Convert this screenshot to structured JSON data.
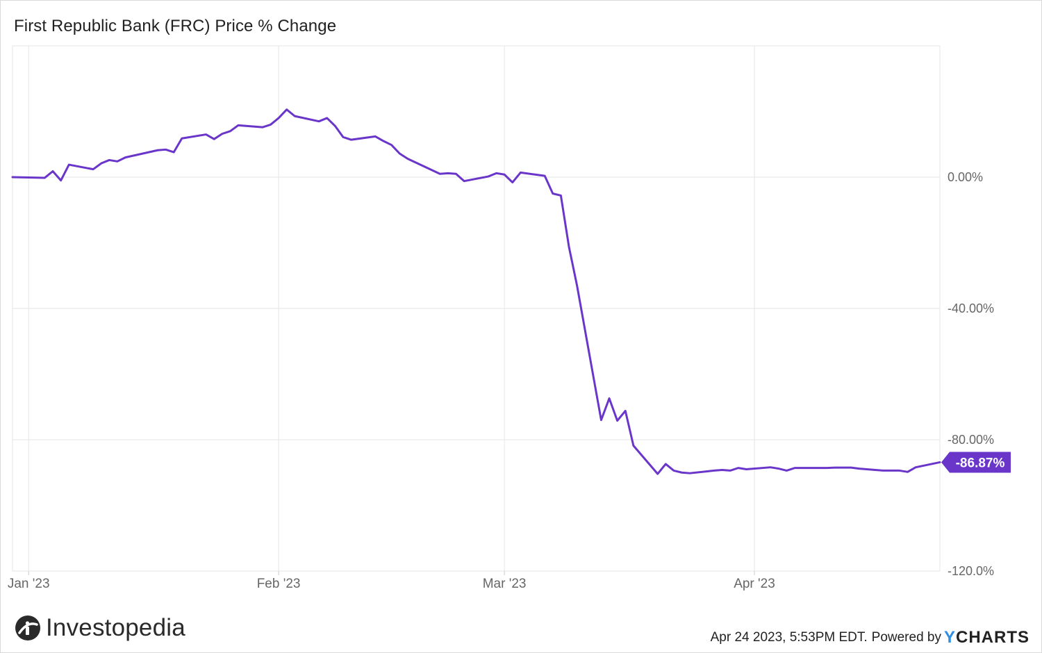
{
  "title": "First Republic Bank (FRC) Price % Change",
  "footer": {
    "timestamp": "Apr 24 2023, 5:53PM EDT.",
    "powered_by": "Powered by",
    "ycharts_y": "Y",
    "ycharts_rest": "CHARTS",
    "brand": "Investopedia",
    "brand_icon": "investopedia-logo-icon"
  },
  "colors": {
    "line": "#6a35c9",
    "grid": "#e6e6e6",
    "axis_text": "#666666",
    "last_value_bg": "#6a35c9",
    "ycharts_y": "#2f8de4"
  },
  "chart_data": {
    "type": "line",
    "title": "First Republic Bank (FRC) Price % Change",
    "xlabel": "",
    "ylabel": "",
    "y_unit": "%",
    "ylim": [
      -120,
      40
    ],
    "y_ticks": [
      0,
      -40,
      -80,
      -120
    ],
    "y_tick_labels": [
      "0.00%",
      "-40.00%",
      "-80.00%",
      "-120.0%"
    ],
    "xlim": [
      "2022-12-30",
      "2023-04-24"
    ],
    "x_ticks": [
      "2023-01-01",
      "2023-02-01",
      "2023-03-01",
      "2023-04-01"
    ],
    "x_tick_labels": [
      "Jan '23",
      "Feb '23",
      "Mar '23",
      "Apr '23"
    ],
    "grid": true,
    "last_value_label": "-86.87%",
    "series": [
      {
        "x": [
          "2022-12-30",
          "2023-01-03",
          "2023-01-04",
          "2023-01-05",
          "2023-01-06",
          "2023-01-09",
          "2023-01-10",
          "2023-01-11",
          "2023-01-12",
          "2023-01-13",
          "2023-01-17",
          "2023-01-18",
          "2023-01-19",
          "2023-01-20",
          "2023-01-23",
          "2023-01-24",
          "2023-01-25",
          "2023-01-26",
          "2023-01-27",
          "2023-01-30",
          "2023-01-31",
          "2023-02-01",
          "2023-02-02",
          "2023-02-03",
          "2023-02-06",
          "2023-02-07",
          "2023-02-08",
          "2023-02-09",
          "2023-02-10",
          "2023-02-13",
          "2023-02-14",
          "2023-02-15",
          "2023-02-16",
          "2023-02-17",
          "2023-02-21",
          "2023-02-22",
          "2023-02-23",
          "2023-02-24",
          "2023-02-27",
          "2023-02-28",
          "2023-03-01",
          "2023-03-02",
          "2023-03-03",
          "2023-03-06",
          "2023-03-07",
          "2023-03-08",
          "2023-03-09",
          "2023-03-10",
          "2023-03-13",
          "2023-03-14",
          "2023-03-15",
          "2023-03-16",
          "2023-03-17",
          "2023-03-20",
          "2023-03-21",
          "2023-03-22",
          "2023-03-23",
          "2023-03-24",
          "2023-03-27",
          "2023-03-28",
          "2023-03-29",
          "2023-03-30",
          "2023-03-31",
          "2023-04-03",
          "2023-04-04",
          "2023-04-05",
          "2023-04-06",
          "2023-04-10",
          "2023-04-11",
          "2023-04-12",
          "2023-04-13",
          "2023-04-14",
          "2023-04-17",
          "2023-04-18",
          "2023-04-19",
          "2023-04-20",
          "2023-04-21",
          "2023-04-24"
        ],
        "values": [
          0.0,
          -0.2,
          1.8,
          -1.0,
          3.8,
          2.4,
          4.2,
          5.2,
          4.8,
          6.0,
          8.2,
          8.4,
          7.6,
          11.8,
          13.0,
          11.6,
          13.2,
          14.0,
          15.8,
          15.2,
          16.0,
          18.0,
          20.6,
          18.6,
          17.0,
          18.0,
          15.6,
          12.2,
          11.4,
          12.4,
          11.0,
          9.8,
          7.2,
          5.6,
          1.0,
          1.2,
          1.0,
          -1.2,
          0.2,
          1.2,
          0.8,
          -1.6,
          1.4,
          0.4,
          -5.0,
          -5.6,
          -21.2,
          -33.0,
          -74.0,
          -67.4,
          -74.2,
          -71.2,
          -81.8,
          -90.4,
          -87.4,
          -89.4,
          -90.0,
          -90.2,
          -89.4,
          -89.2,
          -89.4,
          -88.6,
          -89.0,
          -88.4,
          -88.8,
          -89.4,
          -88.6,
          -88.6,
          -88.5,
          -88.5,
          -88.5,
          -88.8,
          -89.4,
          -89.4,
          -89.4,
          -89.8,
          -88.4,
          -86.87
        ]
      }
    ]
  }
}
